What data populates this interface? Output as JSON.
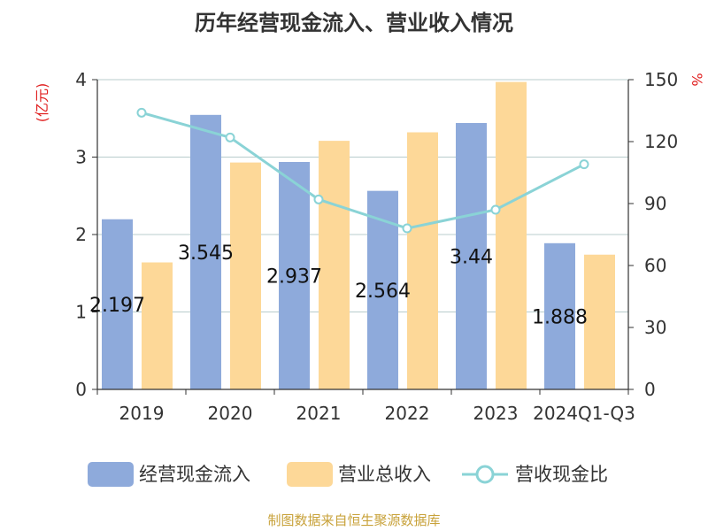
{
  "chart_data": {
    "type": "bar",
    "title": "历年经营现金流入、营业收入情况",
    "categories": [
      "2019",
      "2020",
      "2021",
      "2022",
      "2023",
      "2024Q1-Q3"
    ],
    "y_left": {
      "unit": "(亿元)",
      "range": [
        0,
        4
      ],
      "ticks": [
        "0",
        "1",
        "2",
        "3",
        "4"
      ]
    },
    "y_right": {
      "unit": "%",
      "range": [
        0,
        150
      ],
      "ticks": [
        "0",
        "30",
        "60",
        "90",
        "120",
        "150"
      ]
    },
    "series": [
      {
        "name": "经营现金流入",
        "kind": "bar",
        "axis": "left",
        "color": "#8eaadb",
        "values": [
          2.197,
          3.545,
          2.937,
          2.564,
          3.44,
          1.888
        ],
        "labels": [
          "2.197",
          "3.545",
          "2.937",
          "2.564",
          "3.44",
          "1.888"
        ]
      },
      {
        "name": "营业总收入",
        "kind": "bar",
        "axis": "left",
        "color": "#fdd898",
        "values": [
          1.64,
          2.93,
          3.21,
          3.32,
          3.97,
          1.74
        ]
      },
      {
        "name": "营收现金比",
        "kind": "line",
        "axis": "right",
        "color": "#8ad3d6",
        "values": [
          134,
          122,
          92,
          78,
          87,
          109
        ]
      }
    ],
    "grid": true,
    "legend": "bottom"
  },
  "source": "制图数据来自恒生聚源数据库"
}
